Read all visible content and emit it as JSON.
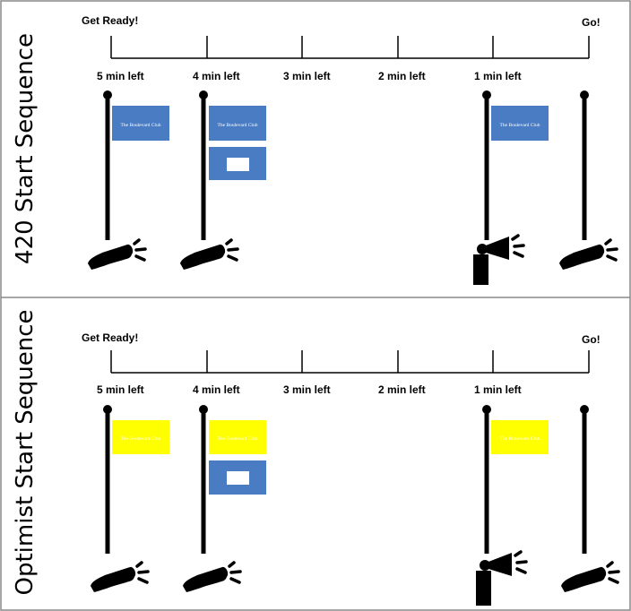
{
  "sections": [
    {
      "title": "420 Start Sequence",
      "start_label": "Get Ready!",
      "end_label": "Go!",
      "ticks": [
        "5 min left",
        "4 min left",
        "3 min left",
        "2 min left",
        "1 min left"
      ],
      "flag_color": "#4a7cc4",
      "flag_text": "The Boulevard Club",
      "flag_text_color": "#ffffff"
    },
    {
      "title": "Optimist Start Sequence",
      "start_label": "Get Ready!",
      "end_label": "Go!",
      "ticks": [
        "5 min left",
        "4 min left",
        "3 min left",
        "2 min left",
        "1 min left"
      ],
      "flag_color": "#ffff00",
      "flag_text": "The Boulevard Club",
      "flag_text_color": "#ffffff"
    }
  ],
  "prep_flag_color": "#4a7cc4",
  "signal_sequence": [
    "cannon",
    "cannon",
    "none",
    "none",
    "horn",
    "cannon"
  ]
}
